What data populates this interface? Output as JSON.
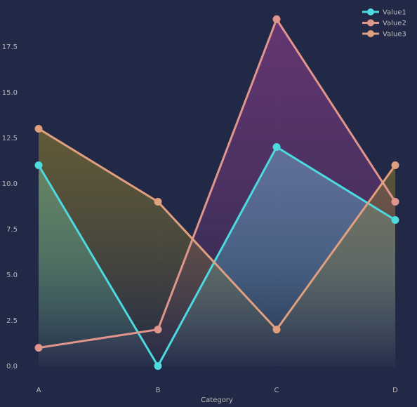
{
  "chart_data": {
    "type": "line",
    "title": "",
    "xlabel": "Category",
    "ylabel": "",
    "categories": [
      "A",
      "B",
      "C",
      "D"
    ],
    "ylim": [
      -0.9,
      19.9
    ],
    "yticks": [
      0.0,
      2.5,
      5.0,
      7.5,
      10.0,
      12.5,
      15.0,
      17.5
    ],
    "ytick_labels": [
      "0.0",
      "2.5",
      "5.0",
      "7.5",
      "10.0",
      "12.5",
      "15.0",
      "17.5"
    ],
    "grid": true,
    "legend_position": "top-right",
    "series": [
      {
        "name": "Value1",
        "values": [
          11,
          0,
          12,
          8
        ],
        "color": "#4dd9e0",
        "fill": "#4dd9e0"
      },
      {
        "name": "Value2",
        "values": [
          1,
          2,
          19,
          9
        ],
        "color": "#e0968c",
        "fill": "#8e3e8c"
      },
      {
        "name": "Value3",
        "values": [
          13,
          9,
          2,
          11
        ],
        "color": "#e0a080",
        "fill": "#8a7a2e"
      }
    ]
  }
}
